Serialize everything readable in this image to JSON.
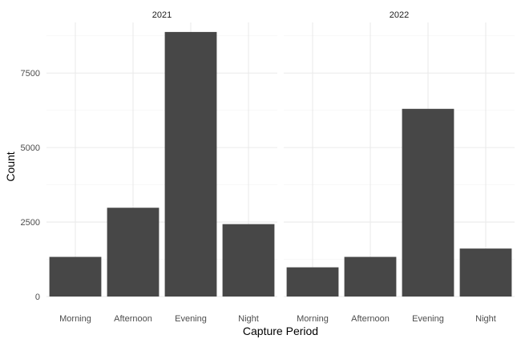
{
  "chart_data": {
    "type": "bar",
    "categories": [
      "Morning",
      "Afternoon",
      "Evening",
      "Night"
    ],
    "xlabel": "Capture Period",
    "ylabel": "Count",
    "ylim": [
      0,
      9200
    ],
    "yticks": [
      0,
      2500,
      5000,
      7500
    ],
    "yticks_labels": [
      "0",
      "2500",
      "5000",
      "7500"
    ],
    "grid": true,
    "bar_color": "#474747",
    "panels": [
      {
        "facet": "2021",
        "values": [
          1330,
          2980,
          8880,
          2430
        ]
      },
      {
        "facet": "2022",
        "values": [
          980,
          1330,
          6300,
          1610
        ]
      }
    ]
  }
}
